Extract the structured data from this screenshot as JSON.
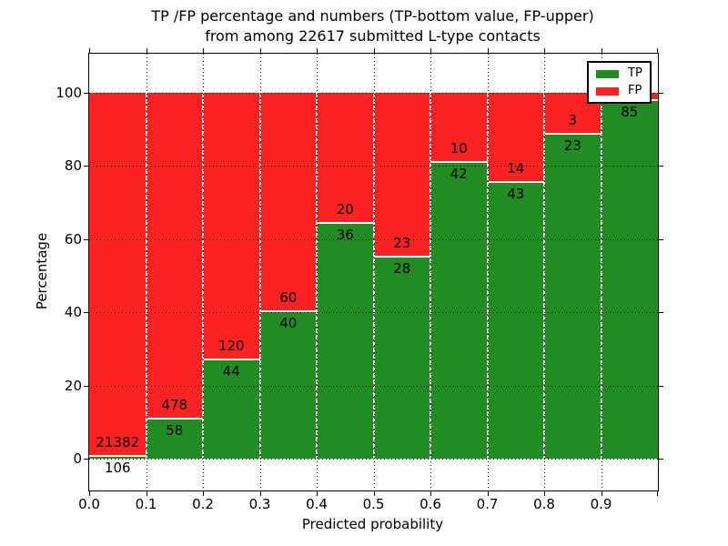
{
  "title": {
    "line1": "TP /FP percentage and numbers (TP-bottom value, FP-upper)",
    "line2": "from among 22617 submitted L-type contacts"
  },
  "legend": {
    "entries": [
      {
        "label": "TP",
        "color": "#228b22"
      },
      {
        "label": "FP",
        "color": "#fb2222"
      }
    ]
  },
  "chart_data": {
    "type": "bar",
    "stacked": true,
    "title": "TP /FP percentage and numbers (TP-bottom value, FP-upper)\nfrom among 22617 submitted L-type contacts",
    "xlabel": "Predicted probability",
    "ylabel": "Percentage",
    "total_submitted": 22617,
    "x_tick_labels": [
      "0.0",
      "0.1",
      "0.2",
      "0.3",
      "0.4",
      "0.5",
      "0.6",
      "0.7",
      "0.8",
      "0.9"
    ],
    "y_ticks": [
      0,
      20,
      40,
      60,
      80,
      100
    ],
    "ylim": [
      0,
      100
    ],
    "grid": true,
    "legend_position": "upper right",
    "categories": [
      "0.0-0.1",
      "0.1-0.2",
      "0.2-0.3",
      "0.3-0.4",
      "0.4-0.5",
      "0.5-0.6",
      "0.6-0.7",
      "0.7-0.8",
      "0.8-0.9",
      "0.9-1.0"
    ],
    "series": [
      {
        "name": "TP",
        "color": "#228b22",
        "counts": [
          106,
          58,
          44,
          40,
          36,
          28,
          42,
          43,
          23,
          85
        ],
        "pct": [
          0.5,
          10.8,
          26.8,
          40.0,
          64.3,
          54.9,
          80.8,
          75.4,
          88.5,
          97.7
        ]
      },
      {
        "name": "FP",
        "color": "#fb2222",
        "counts": [
          21382,
          478,
          120,
          60,
          20,
          23,
          10,
          14,
          3,
          null
        ],
        "pct": [
          99.5,
          89.2,
          73.2,
          60.0,
          35.7,
          45.1,
          19.2,
          24.6,
          11.5,
          2.3
        ]
      }
    ]
  }
}
